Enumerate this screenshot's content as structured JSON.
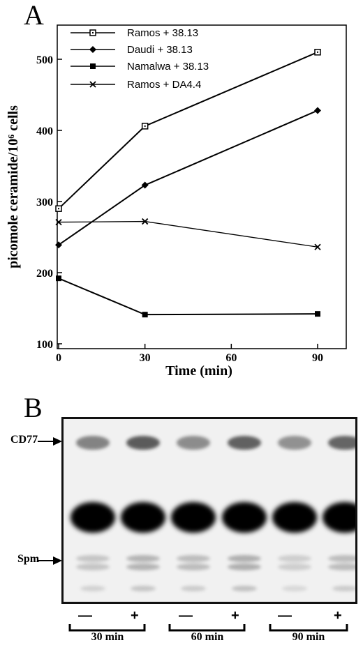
{
  "panel_a": {
    "letter": "A",
    "chart_data": {
      "type": "line",
      "title": "",
      "xlabel": "Time (min)",
      "ylabel": "picomole ceramide/10⁶ cells",
      "x_ticks": [
        0,
        30,
        60,
        90
      ],
      "y_ticks": [
        100,
        200,
        300,
        400,
        500
      ],
      "xlim": [
        0,
        90
      ],
      "ylim": [
        100,
        520
      ],
      "legend_position": "top-left",
      "series": [
        {
          "name": "Ramos + 38.13",
          "marker": "open-square",
          "x": [
            0,
            30,
            90
          ],
          "y": [
            290,
            406,
            510
          ]
        },
        {
          "name": "Daudi + 38.13",
          "marker": "diamond",
          "x": [
            0,
            30,
            90
          ],
          "y": [
            239,
            323,
            428
          ]
        },
        {
          "name": "Namalwa + 38.13",
          "marker": "filled-square",
          "x": [
            0,
            30,
            90
          ],
          "y": [
            192,
            141,
            142
          ]
        },
        {
          "name": "Ramos + DA4.4",
          "marker": "cross",
          "x": [
            0,
            30,
            90
          ],
          "y": [
            271,
            272,
            236
          ]
        }
      ]
    }
  },
  "panel_b": {
    "letter": "B",
    "band_labels": {
      "cd77": "CD77",
      "spm": "Spm"
    },
    "lane_signs": [
      "—",
      "+",
      "—",
      "+",
      "—",
      "+"
    ],
    "time_groups": [
      "30 min",
      "60 min",
      "90 min"
    ]
  }
}
